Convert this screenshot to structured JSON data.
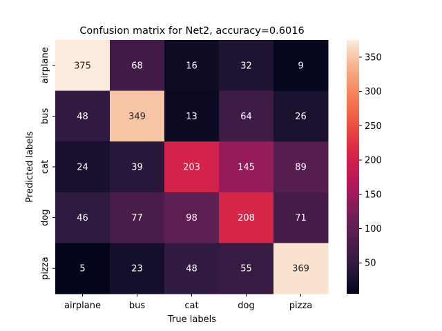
{
  "chart_data": {
    "type": "heatmap",
    "title": "Confusion matrix for Net2, accuracy=0.6016",
    "xlabel": "True labels",
    "ylabel": "Predicted labels",
    "x_categories": [
      "airplane",
      "bus",
      "cat",
      "dog",
      "pizza"
    ],
    "y_categories": [
      "airplane",
      "bus",
      "cat",
      "dog",
      "pizza"
    ],
    "values": [
      [
        375,
        68,
        16,
        32,
        9
      ],
      [
        48,
        349,
        13,
        64,
        26
      ],
      [
        24,
        39,
        203,
        145,
        89
      ],
      [
        46,
        77,
        98,
        208,
        71
      ],
      [
        5,
        23,
        48,
        55,
        369
      ]
    ],
    "colorbar": {
      "min": 5,
      "max": 375,
      "ticks": [
        50,
        100,
        150,
        200,
        250,
        300,
        350
      ],
      "colormap": "rocket",
      "colors": [
        "#03051a",
        "#2b1a3e",
        "#4c1d4b",
        "#6e1f57",
        "#a11a5b",
        "#cb1b4f",
        "#e13342",
        "#f06043",
        "#f58860",
        "#f6b48e",
        "#faebdd"
      ]
    }
  }
}
